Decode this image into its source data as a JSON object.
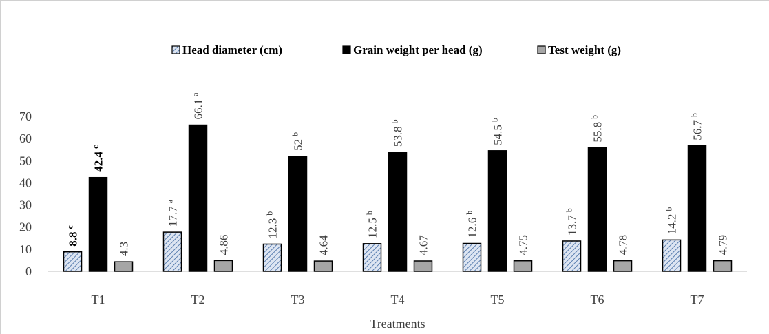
{
  "chart_data": {
    "type": "bar",
    "xlabel": "Treatments",
    "ylabel": "",
    "ylim": [
      0,
      70
    ],
    "yticks": [
      0,
      10,
      20,
      30,
      40,
      50,
      60,
      70
    ],
    "grid": false,
    "legend_position": "top",
    "categories": [
      "T1",
      "T2",
      "T3",
      "T4",
      "T5",
      "T6",
      "T7"
    ],
    "series": [
      {
        "name": "Head diameter (cm)",
        "style": "hatched",
        "fill": "#c5d3e8",
        "stroke": "#000000",
        "values": [
          8.8,
          17.7,
          12.3,
          12.5,
          12.6,
          13.7,
          14.2
        ],
        "labels": [
          "8.8",
          "17.7",
          "12.3",
          "12.5",
          "12.6",
          "13.7",
          "14.2"
        ],
        "letters": [
          "c",
          "a",
          "b",
          "b",
          "b",
          "b",
          "b"
        ],
        "bold": [
          true,
          false,
          false,
          false,
          false,
          false,
          false
        ]
      },
      {
        "name": "Grain weight per head (g)",
        "style": "solid",
        "fill": "#000000",
        "stroke": "#000000",
        "values": [
          42.4,
          66.1,
          52,
          53.8,
          54.5,
          55.8,
          56.7
        ],
        "labels": [
          "42.4",
          "66.1",
          "52",
          "53.8",
          "54.5",
          "55.8",
          "56.7"
        ],
        "letters": [
          "c",
          "a",
          "b",
          "b",
          "b",
          "b",
          "b"
        ],
        "bold": [
          true,
          false,
          false,
          false,
          false,
          false,
          false
        ]
      },
      {
        "name": "Test weight (g)",
        "style": "solid",
        "fill": "#a6a6a6",
        "stroke": "#000000",
        "values": [
          4.3,
          4.86,
          4.64,
          4.67,
          4.75,
          4.78,
          4.79
        ],
        "labels": [
          "4.3",
          "4.86",
          "4.64",
          "4.67",
          "4.75",
          "4.78",
          "4.79"
        ],
        "letters": [
          "",
          "",
          "",
          "",
          "",
          "",
          ""
        ],
        "bold": [
          false,
          false,
          false,
          false,
          false,
          false,
          false
        ]
      }
    ]
  }
}
